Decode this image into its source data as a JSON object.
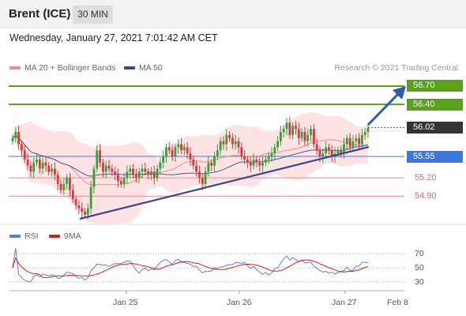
{
  "header": {
    "instrument": "Brent (ICE)",
    "timeframe": "30 MIN",
    "datetime": "Wednesday, January 27, 2021 7:01:42 AM CET"
  },
  "legend": {
    "ma20": "MA 20 + Bollinger Bands",
    "ma50": "MA 50",
    "copyright": "Research © 2021 Trading Central"
  },
  "colors": {
    "ma20": "#f28c8c",
    "ma50": "#2f4f8f",
    "bollinger_fill": "#fde3e3",
    "resistance": "#5aa11c",
    "support": "#6a8fe0",
    "support_red": "#e8a0a0",
    "trendline": "#3a4690",
    "arrow": "#2c5db0",
    "candle_up": "#3b9c3b",
    "candle_down": "#d23b3b",
    "rsi": "#5b7fd6",
    "rsi_ma": "#d02020",
    "last_price_bg": "#333333"
  },
  "levels": [
    {
      "label": "56.70",
      "kind": "resistance"
    },
    {
      "label": "56.40",
      "kind": "resistance"
    },
    {
      "label": "56.02",
      "kind": "last"
    },
    {
      "label": "55.55",
      "kind": "pivot"
    },
    {
      "label": "55.20",
      "kind": "support"
    },
    {
      "label": "54.90",
      "kind": "support"
    }
  ],
  "indicator": {
    "rsi_label": "RSI",
    "ma_label": "9MA",
    "ticks": [
      "70",
      "50",
      "30"
    ]
  },
  "xaxis": {
    "dates": [
      "Jan 25",
      "Jan 26",
      "Jan 27",
      "Feb 8"
    ]
  },
  "chart_data": {
    "type": "candlestick",
    "price_range": [
      54.44,
      56.88
    ],
    "horizontal_levels": [
      56.7,
      56.4,
      55.55,
      55.2,
      54.9
    ],
    "last_price": 56.02,
    "closes": [
      55.85,
      55.95,
      55.75,
      55.65,
      55.5,
      55.4,
      55.3,
      55.45,
      55.5,
      55.35,
      55.45,
      55.4,
      55.3,
      55.35,
      55.25,
      55.1,
      55.0,
      55.1,
      55.2,
      55.0,
      54.85,
      54.75,
      54.7,
      54.65,
      54.6,
      54.7,
      55.05,
      55.35,
      55.65,
      55.45,
      55.3,
      55.4,
      55.35,
      55.3,
      55.25,
      55.15,
      55.1,
      55.2,
      55.3,
      55.35,
      55.25,
      55.2,
      55.3,
      55.35,
      55.3,
      55.25,
      55.3,
      55.2,
      55.35,
      55.45,
      55.55,
      55.7,
      55.65,
      55.55,
      55.7,
      55.75,
      55.65,
      55.7,
      55.6,
      55.5,
      55.4,
      55.3,
      55.2,
      55.1,
      55.3,
      55.45,
      55.4,
      55.55,
      55.65,
      55.8,
      55.75,
      55.9,
      55.85,
      55.75,
      55.8,
      55.7,
      55.55,
      55.5,
      55.45,
      55.4,
      55.5,
      55.45,
      55.4,
      55.45,
      55.5,
      55.55,
      55.6,
      55.7,
      55.8,
      55.95,
      56.0,
      56.1,
      55.9,
      56.05,
      56.0,
      55.85,
      55.95,
      55.8,
      55.9,
      56.0,
      55.75,
      55.65,
      55.55,
      55.6,
      55.7,
      55.65,
      55.55,
      55.6,
      55.65,
      55.6,
      55.75,
      55.85,
      55.7,
      55.8,
      55.85,
      55.75,
      55.9,
      55.95,
      56.02
    ]
  }
}
